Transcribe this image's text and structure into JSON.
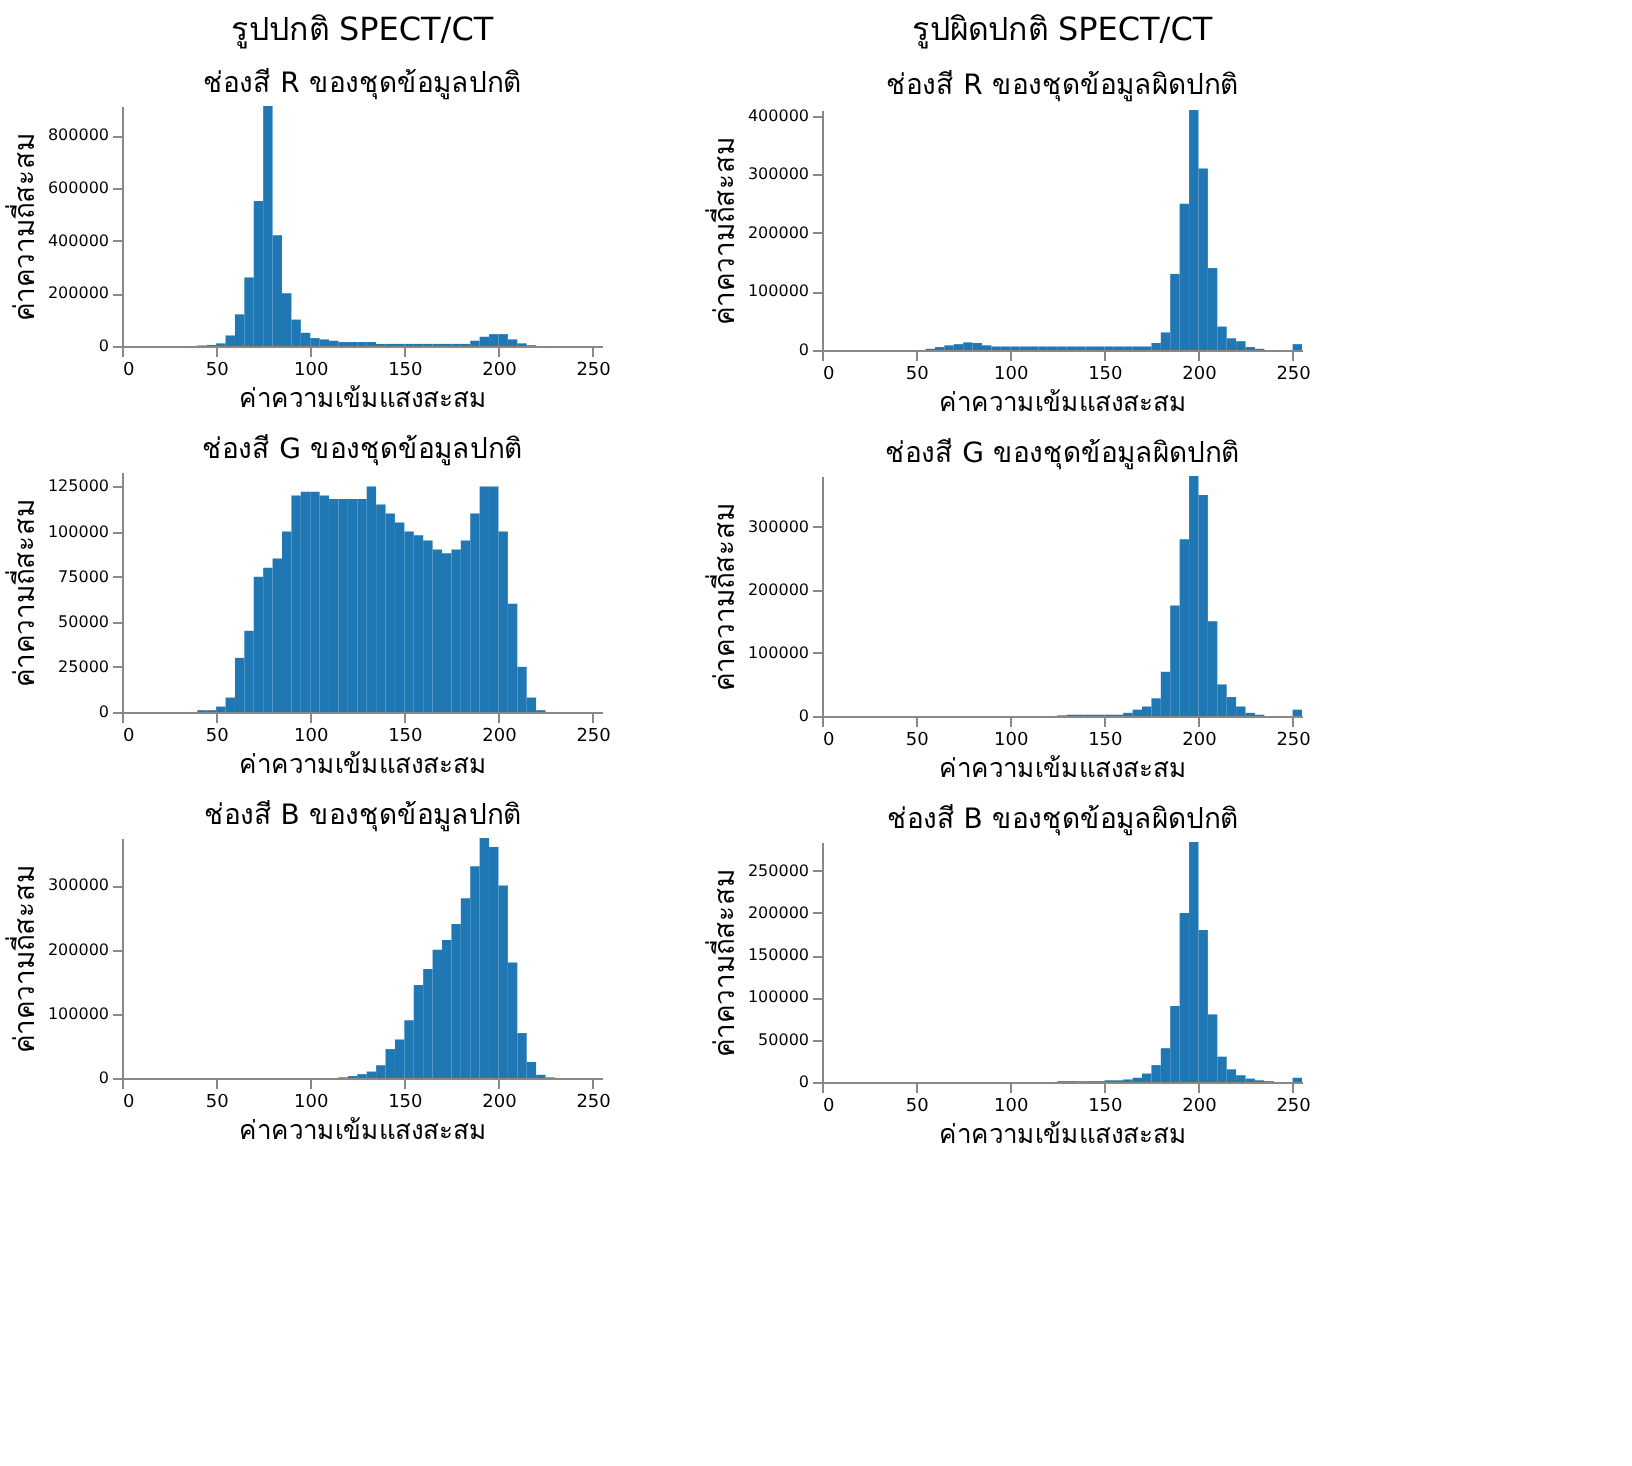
{
  "chart_data": [
    {
      "type": "histogram",
      "title": "ช่องสี R ของชุดข้อมูลปกติ",
      "annotations": [
        "รูปปกติ SPECT/CT"
      ],
      "xlabel": "ค่าความเข้มแสงสะสม",
      "ylabel": "ค่าความถี่สะสม",
      "color": "#1f77b4",
      "xlim": [
        0,
        255
      ],
      "xticks": [
        0,
        50,
        100,
        150,
        200,
        250
      ],
      "ylim": [
        0,
        910000
      ],
      "yticks": [
        0,
        200000,
        400000,
        600000,
        800000
      ],
      "bins": [
        0,
        5,
        10,
        15,
        20,
        25,
        30,
        35,
        40,
        45,
        50,
        55,
        60,
        65,
        70,
        75,
        80,
        85,
        90,
        95,
        100,
        105,
        110,
        115,
        120,
        125,
        130,
        135,
        140,
        145,
        150,
        155,
        160,
        165,
        170,
        175,
        180,
        185,
        190,
        195,
        200,
        205,
        210,
        215,
        220,
        225,
        230,
        235,
        240,
        245,
        250,
        255
      ],
      "values": [
        0,
        0,
        0,
        0,
        0,
        0,
        0,
        0,
        2000,
        4000,
        10000,
        40000,
        120000,
        260000,
        550000,
        910000,
        420000,
        200000,
        100000,
        50000,
        30000,
        25000,
        20000,
        15000,
        15000,
        15000,
        15000,
        8000,
        8000,
        8000,
        8000,
        8000,
        8000,
        8000,
        8000,
        8000,
        8000,
        20000,
        35000,
        45000,
        45000,
        25000,
        10000,
        3000,
        0,
        0,
        0,
        0,
        0,
        0,
        0
      ]
    },
    {
      "type": "histogram",
      "title": "ช่องสี R ของชุดข้อมูลผิดปกติ",
      "annotations": [
        "รูปผิดปกติ SPECT/CT"
      ],
      "xlabel": "ค่าความเข้มแสงสะสม",
      "ylabel": "ค่าความถี่สะสม",
      "color": "#1f77b4",
      "xlim": [
        0,
        255
      ],
      "xticks": [
        0,
        50,
        100,
        150,
        200,
        250
      ],
      "ylim": [
        0,
        410000
      ],
      "yticks": [
        0,
        100000,
        200000,
        300000,
        400000
      ],
      "bins": [
        0,
        5,
        10,
        15,
        20,
        25,
        30,
        35,
        40,
        45,
        50,
        55,
        60,
        65,
        70,
        75,
        80,
        85,
        90,
        95,
        100,
        105,
        110,
        115,
        120,
        125,
        130,
        135,
        140,
        145,
        150,
        155,
        160,
        165,
        170,
        175,
        180,
        185,
        190,
        195,
        200,
        205,
        210,
        215,
        220,
        225,
        230,
        235,
        240,
        245,
        250,
        255
      ],
      "values": [
        0,
        0,
        0,
        0,
        0,
        0,
        0,
        0,
        0,
        0,
        0,
        2000,
        5000,
        8000,
        10000,
        13000,
        12000,
        8000,
        6000,
        6000,
        6000,
        6000,
        6000,
        6000,
        6000,
        6000,
        6000,
        6000,
        6000,
        6000,
        6000,
        6000,
        6000,
        6000,
        6000,
        12000,
        30000,
        130000,
        250000,
        410000,
        310000,
        140000,
        40000,
        20000,
        15000,
        5000,
        2000,
        0,
        0,
        0,
        10000
      ]
    },
    {
      "type": "histogram",
      "title": "ช่องสี G ของชุดข้อมูลปกติ",
      "xlabel": "ค่าความเข้มแสงสะสม",
      "ylabel": "ค่าความถี่สะสม",
      "color": "#1f77b4",
      "xlim": [
        0,
        255
      ],
      "xticks": [
        0,
        50,
        100,
        150,
        200,
        250
      ],
      "ylim": [
        0,
        133000
      ],
      "yticks": [
        0,
        25000,
        50000,
        75000,
        100000,
        125000
      ],
      "bins": [
        0,
        5,
        10,
        15,
        20,
        25,
        30,
        35,
        40,
        45,
        50,
        55,
        60,
        65,
        70,
        75,
        80,
        85,
        90,
        95,
        100,
        105,
        110,
        115,
        120,
        125,
        130,
        135,
        140,
        145,
        150,
        155,
        160,
        165,
        170,
        175,
        180,
        185,
        190,
        195,
        200,
        205,
        210,
        215,
        220,
        225,
        230,
        235,
        240,
        245,
        250,
        255
      ],
      "values": [
        0,
        0,
        0,
        0,
        0,
        0,
        0,
        0,
        1000,
        1000,
        3000,
        8000,
        30000,
        45000,
        75000,
        80000,
        85000,
        100000,
        120000,
        122000,
        122000,
        120000,
        118000,
        118000,
        118000,
        118000,
        125000,
        115000,
        110000,
        105000,
        100000,
        98000,
        95000,
        90000,
        88000,
        90000,
        95000,
        110000,
        125000,
        125000,
        100000,
        60000,
        25000,
        8000,
        1000,
        0,
        0,
        0,
        0,
        0,
        0
      ]
    },
    {
      "type": "histogram",
      "title": "ช่องสี G ของชุดข้อมูลผิดปกติ",
      "xlabel": "ค่าความเข้มแสงสะสม",
      "ylabel": "ค่าความถี่สะสม",
      "color": "#1f77b4",
      "xlim": [
        0,
        255
      ],
      "xticks": [
        0,
        50,
        100,
        150,
        200,
        250
      ],
      "ylim": [
        0,
        380000
      ],
      "yticks": [
        0,
        100000,
        200000,
        300000
      ],
      "bins": [
        0,
        5,
        10,
        15,
        20,
        25,
        30,
        35,
        40,
        45,
        50,
        55,
        60,
        65,
        70,
        75,
        80,
        85,
        90,
        95,
        100,
        105,
        110,
        115,
        120,
        125,
        130,
        135,
        140,
        145,
        150,
        155,
        160,
        165,
        170,
        175,
        180,
        185,
        190,
        195,
        200,
        205,
        210,
        215,
        220,
        225,
        230,
        235,
        240,
        245,
        250,
        255
      ],
      "values": [
        0,
        0,
        0,
        0,
        0,
        0,
        0,
        0,
        0,
        0,
        0,
        0,
        0,
        0,
        0,
        0,
        0,
        0,
        0,
        0,
        0,
        0,
        0,
        0,
        0,
        1000,
        2000,
        2000,
        2000,
        2000,
        2000,
        2000,
        5000,
        10000,
        15000,
        28000,
        70000,
        175000,
        280000,
        380000,
        350000,
        150000,
        50000,
        30000,
        15000,
        5000,
        2000,
        0,
        0,
        0,
        10000
      ]
    },
    {
      "type": "histogram",
      "title": "ช่องสี B ของชุดข้อมูลปกติ",
      "xlabel": "ค่าความเข้มแสงสะสม",
      "ylabel": "ค่าความถี่สะสม",
      "color": "#1f77b4",
      "xlim": [
        0,
        255
      ],
      "xticks": [
        0,
        50,
        100,
        150,
        200,
        250
      ],
      "ylim": [
        0,
        374000
      ],
      "yticks": [
        0,
        100000,
        200000,
        300000
      ],
      "bins": [
        0,
        5,
        10,
        15,
        20,
        25,
        30,
        35,
        40,
        45,
        50,
        55,
        60,
        65,
        70,
        75,
        80,
        85,
        90,
        95,
        100,
        105,
        110,
        115,
        120,
        125,
        130,
        135,
        140,
        145,
        150,
        155,
        160,
        165,
        170,
        175,
        180,
        185,
        190,
        195,
        200,
        205,
        210,
        215,
        220,
        225,
        230,
        235,
        240,
        245,
        250,
        255
      ],
      "values": [
        0,
        0,
        0,
        0,
        0,
        0,
        0,
        0,
        0,
        0,
        0,
        0,
        0,
        0,
        0,
        0,
        0,
        0,
        0,
        0,
        0,
        0,
        0,
        1000,
        3000,
        6000,
        10000,
        20000,
        45000,
        60000,
        90000,
        145000,
        170000,
        200000,
        215000,
        240000,
        280000,
        330000,
        374000,
        360000,
        300000,
        180000,
        70000,
        25000,
        5000,
        1000,
        0,
        0,
        0,
        0,
        0
      ]
    },
    {
      "type": "histogram",
      "title": "ช่องสี B ของชุดข้อมูลผิดปกติ",
      "xlabel": "ค่าความเข้มแสงสะสม",
      "ylabel": "ค่าความถี่สะสม",
      "color": "#1f77b4",
      "xlim": [
        0,
        255
      ],
      "xticks": [
        0,
        50,
        100,
        150,
        200,
        250
      ],
      "ylim": [
        0,
        284000
      ],
      "yticks": [
        0,
        50000,
        100000,
        150000,
        200000,
        250000
      ],
      "bins": [
        0,
        5,
        10,
        15,
        20,
        25,
        30,
        35,
        40,
        45,
        50,
        55,
        60,
        65,
        70,
        75,
        80,
        85,
        90,
        95,
        100,
        105,
        110,
        115,
        120,
        125,
        130,
        135,
        140,
        145,
        150,
        155,
        160,
        165,
        170,
        175,
        180,
        185,
        190,
        195,
        200,
        205,
        210,
        215,
        220,
        225,
        230,
        235,
        240,
        245,
        250,
        255
      ],
      "values": [
        0,
        0,
        0,
        0,
        0,
        0,
        0,
        0,
        0,
        0,
        0,
        0,
        0,
        0,
        0,
        0,
        0,
        0,
        0,
        0,
        0,
        0,
        0,
        0,
        0,
        1000,
        1000,
        1000,
        1000,
        1000,
        2000,
        2000,
        3000,
        5000,
        10000,
        20000,
        40000,
        90000,
        200000,
        284000,
        180000,
        80000,
        30000,
        15000,
        8000,
        4000,
        2000,
        1000,
        0,
        0,
        5000
      ]
    }
  ]
}
